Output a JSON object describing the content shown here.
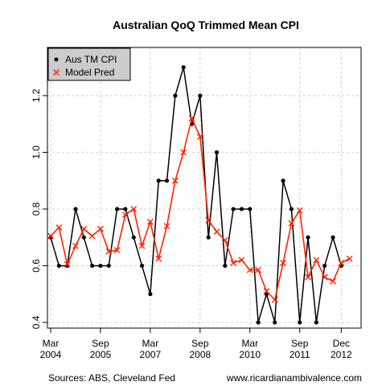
{
  "chart_data": {
    "type": "line",
    "title": "Australian QoQ Trimmed Mean CPI",
    "ylim": [
      0.38,
      1.37
    ],
    "yticks": [
      0.4,
      0.6,
      0.8,
      1.0,
      1.2
    ],
    "ytick_labels": [
      "0.4",
      "0.6",
      "0.8",
      "1.0",
      "1.2"
    ],
    "x_range": [
      0,
      37
    ],
    "xticks": [
      {
        "index": 0,
        "line1": "Mar",
        "line2": "2004"
      },
      {
        "index": 6,
        "line1": "Sep",
        "line2": "2005"
      },
      {
        "index": 12,
        "line1": "Mar",
        "line2": "2007"
      },
      {
        "index": 18,
        "line1": "Sep",
        "line2": "2008"
      },
      {
        "index": 24,
        "line1": "Mar",
        "line2": "2010"
      },
      {
        "index": 30,
        "line1": "Sep",
        "line2": "2011"
      },
      {
        "index": 35,
        "line1": "Dec",
        "line2": "2012"
      }
    ],
    "grid": true,
    "legend_position": "top-left",
    "series": [
      {
        "name": "Aus TM CPI",
        "color": "#000000",
        "marker": "dot",
        "values": [
          0.7,
          0.6,
          0.6,
          0.8,
          0.7,
          0.6,
          0.6,
          0.6,
          0.8,
          0.8,
          0.7,
          0.6,
          0.5,
          0.9,
          0.9,
          1.2,
          1.3,
          1.1,
          1.2,
          0.7,
          1.0,
          0.6,
          0.8,
          0.8,
          0.8,
          0.4,
          0.5,
          0.4,
          0.9,
          0.8,
          0.4,
          0.7,
          0.4,
          0.6,
          0.7,
          0.6
        ]
      },
      {
        "name": "Model Pred",
        "color": "#ff2200",
        "marker": "x",
        "values": [
          0.705,
          0.735,
          0.605,
          0.67,
          0.73,
          0.705,
          0.73,
          0.65,
          0.655,
          0.78,
          0.8,
          0.67,
          0.755,
          0.625,
          0.74,
          0.9,
          1.0,
          1.12,
          1.055,
          0.76,
          0.72,
          0.69,
          0.61,
          0.62,
          0.585,
          0.585,
          0.51,
          0.48,
          0.61,
          0.75,
          0.795,
          0.56,
          0.62,
          0.56,
          0.545,
          0.61,
          0.625
        ]
      }
    ]
  },
  "footer": {
    "source": "Sources: ABS, Cleveland Fed",
    "website": "www.ricardianambivalence.com"
  }
}
